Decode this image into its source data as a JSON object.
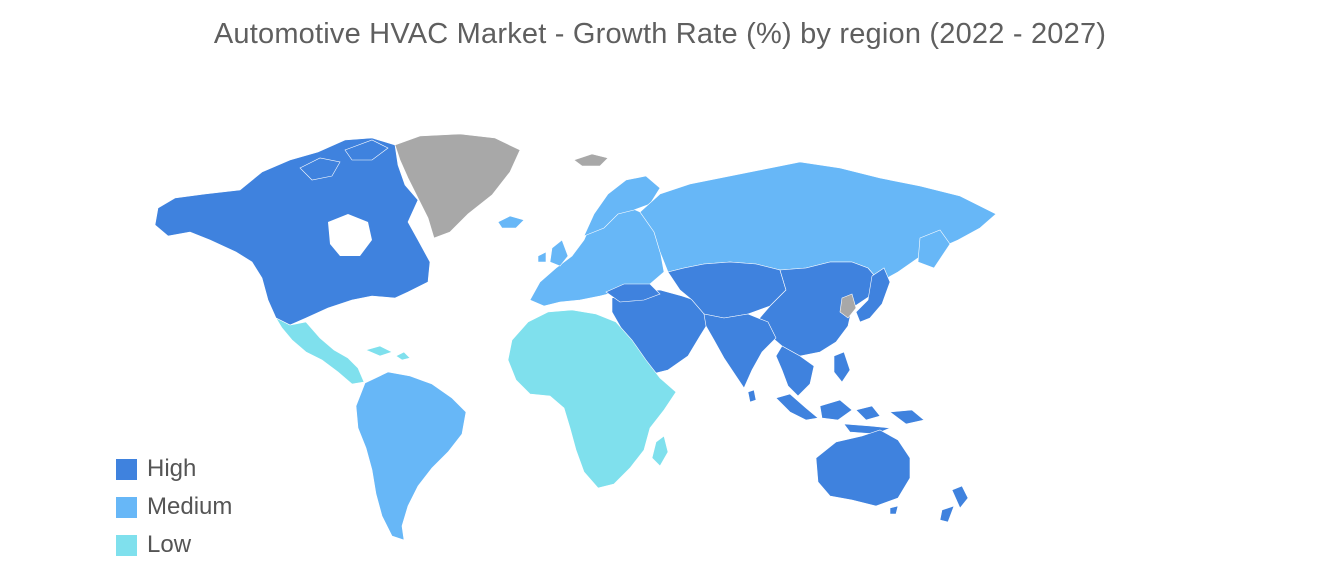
{
  "title": "Automotive HVAC Market - Growth Rate (%) by region (2022 - 2027)",
  "legend": {
    "items": [
      {
        "label": "High",
        "color": "#3f82de"
      },
      {
        "label": "Medium",
        "color": "#67b7f7"
      },
      {
        "label": "Low",
        "color": "#7fe0ed"
      }
    ]
  },
  "map": {
    "no_data_color": "#a8a8a8",
    "regions": {
      "north_america": "High",
      "central_america": "Low",
      "south_america": "Medium",
      "greenland": "No data",
      "europe": "Medium",
      "russia": "Medium",
      "africa": "Low",
      "middle_east": "High",
      "central_asia": "High",
      "china": "High",
      "india": "High",
      "japan": "High",
      "korea": "No data",
      "southeast_asia": "High",
      "australia": "High",
      "new_zealand": "High"
    }
  }
}
